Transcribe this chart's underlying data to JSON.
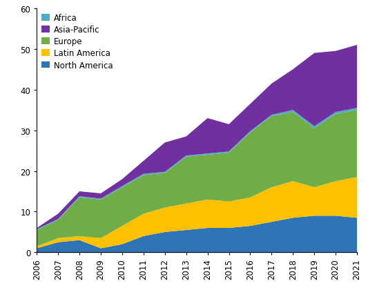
{
  "years": [
    2006,
    2007,
    2008,
    2009,
    2010,
    2011,
    2012,
    2013,
    2014,
    2015,
    2016,
    2017,
    2018,
    2019,
    2020,
    2021
  ],
  "regions": [
    "North America",
    "Latin America",
    "Europe",
    "Africa",
    "Asia-Pacific"
  ],
  "colors": [
    "#2E75B6",
    "#FFC000",
    "#70AD47",
    "#4BACC6",
    "#7030A0"
  ],
  "data": {
    "North America": [
      1.0,
      2.5,
      3.0,
      1.0,
      2.0,
      4.0,
      5.0,
      5.5,
      6.0,
      6.0,
      6.5,
      7.5,
      8.5,
      9.0,
      9.0,
      8.5
    ],
    "Latin America": [
      0.5,
      1.0,
      1.0,
      2.5,
      4.5,
      5.5,
      6.0,
      6.5,
      7.0,
      6.5,
      7.0,
      8.5,
      9.0,
      7.0,
      8.5,
      10.0
    ],
    "Europe": [
      4.0,
      4.5,
      9.5,
      9.5,
      9.5,
      9.5,
      8.5,
      11.5,
      11.0,
      12.0,
      16.0,
      17.5,
      17.0,
      14.5,
      16.5,
      16.5
    ],
    "Africa": [
      0.2,
      0.2,
      0.3,
      0.2,
      0.3,
      0.3,
      0.3,
      0.3,
      0.3,
      0.3,
      0.3,
      0.3,
      0.5,
      0.5,
      0.5,
      0.5
    ],
    "Asia-Pacific": [
      0.3,
      1.3,
      1.2,
      1.3,
      1.7,
      3.2,
      7.2,
      4.7,
      8.7,
      6.7,
      6.7,
      7.7,
      10.0,
      18.0,
      15.0,
      15.5
    ]
  },
  "ylim": [
    0,
    60
  ],
  "yticks": [
    0,
    10,
    20,
    30,
    40,
    50,
    60
  ],
  "legend_order": [
    "Africa",
    "Asia-Pacific",
    "Europe",
    "Latin America",
    "North America"
  ],
  "legend_colors": {
    "Africa": "#4BACC6",
    "Asia-Pacific": "#7030A0",
    "Europe": "#70AD47",
    "Latin America": "#FFC000",
    "North America": "#2E75B6"
  },
  "background_color": "#FFFFFF",
  "figsize": [
    5.33,
    4.31
  ],
  "dpi": 100
}
